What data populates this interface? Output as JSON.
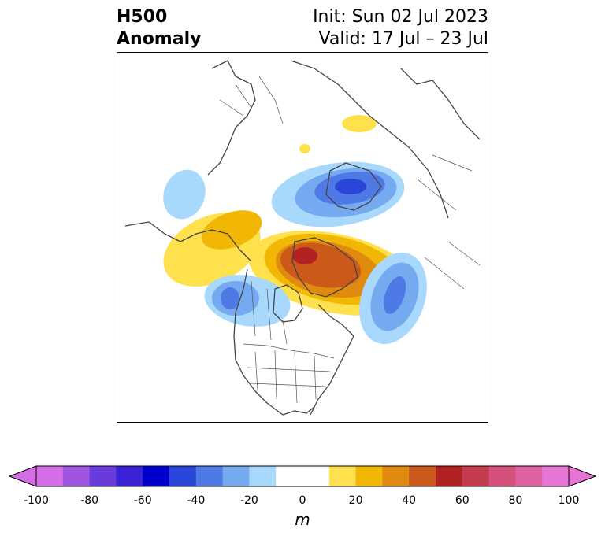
{
  "title": {
    "left_line1": "H500",
    "left_line2": "Anomaly",
    "right_line1": "Init: Sun 02 Jul 2023",
    "right_line2": "Valid: 17 Jul – 23 Jul"
  },
  "colorbar": {
    "unit": "m",
    "ticks": [
      "-100",
      "-80",
      "-60",
      "-40",
      "-20",
      "0",
      "20",
      "40",
      "60",
      "80",
      "100"
    ],
    "levels": [
      -100,
      -90,
      -80,
      -70,
      -60,
      -50,
      -40,
      -30,
      -20,
      -10,
      10,
      20,
      30,
      40,
      50,
      60,
      70,
      80,
      90,
      100
    ],
    "colors": [
      "#d46ee6",
      "#9f55e0",
      "#6a3bdc",
      "#3b22d6",
      "#0000cd",
      "#2a45d9",
      "#4f79e5",
      "#76aaf0",
      "#a8d8fb",
      "#ffffff",
      "#ffe14d",
      "#f2b705",
      "#e08a10",
      "#cb5a1a",
      "#b22222",
      "#c43b4e",
      "#d4507a",
      "#dc62a4",
      "#e675d6"
    ],
    "extend_low_color": "#d46ee6",
    "extend_high_color": "#e675d6"
  },
  "anomaly_colors": {
    "neg_light": "#a8d8fb",
    "neg_mid": "#76aaf0",
    "neg_strong": "#4f79e5",
    "neg_deep": "#2a45d9",
    "pos_light": "#ffe14d",
    "pos_mid": "#f2b705",
    "pos_strong": "#e08a10",
    "pos_deep": "#cb5a1a",
    "pos_core": "#b22222"
  }
}
